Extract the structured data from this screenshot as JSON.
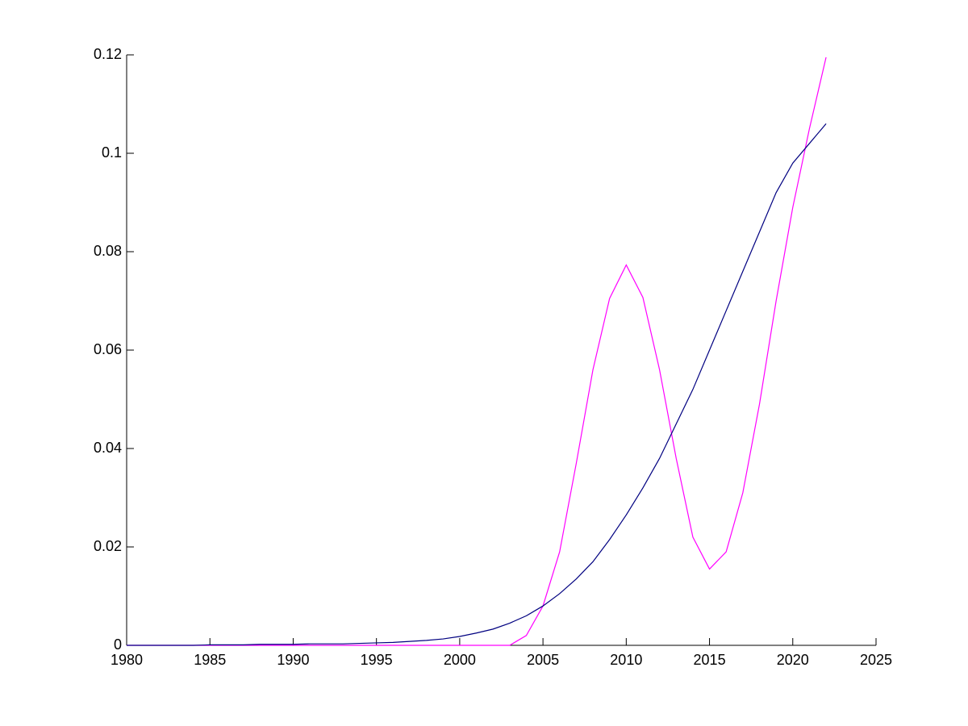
{
  "chart_data": {
    "type": "line",
    "x": [
      1980,
      1981,
      1982,
      1983,
      1984,
      1985,
      1986,
      1987,
      1988,
      1989,
      1990,
      1991,
      1992,
      1993,
      1994,
      1995,
      1996,
      1997,
      1998,
      1999,
      2000,
      2001,
      2002,
      2003,
      2004,
      2005,
      2006,
      2007,
      2008,
      2009,
      2010,
      2011,
      2012,
      2013,
      2014,
      2015,
      2016,
      2017,
      2018,
      2019,
      2020,
      2021,
      2022
    ],
    "series": [
      {
        "color": "#ff00ff",
        "values": [
          0,
          0,
          0,
          0,
          0,
          0,
          0,
          0,
          0,
          0,
          0,
          0,
          0,
          0,
          0,
          0,
          0,
          0,
          0,
          0,
          0,
          0,
          0,
          0,
          0.002,
          0.008,
          0.019,
          0.037,
          0.056,
          0.0705,
          0.0773,
          0.0707,
          0.056,
          0.038,
          0.022,
          0.0155,
          0.019,
          0.031,
          0.049,
          0.07,
          0.089,
          0.105,
          0.1195
        ]
      },
      {
        "color": "#000080",
        "values": [
          0,
          0,
          0,
          0,
          0,
          0.0001,
          0.0001,
          0.0001,
          0.0002,
          0.0002,
          0.0002,
          0.0003,
          0.0003,
          0.0003,
          0.0004,
          0.0005,
          0.0006,
          0.0008,
          0.001,
          0.0013,
          0.0018,
          0.0025,
          0.0033,
          0.0045,
          0.006,
          0.008,
          0.0105,
          0.0135,
          0.017,
          0.0215,
          0.0265,
          0.032,
          0.038,
          0.045,
          0.052,
          0.06,
          0.068,
          0.076,
          0.084,
          0.092,
          0.098,
          0.102,
          0.106
        ]
      }
    ],
    "xlim": [
      1980,
      2025
    ],
    "xticks": [
      1980,
      1985,
      1990,
      1995,
      2000,
      2005,
      2010,
      2015,
      2020,
      2025
    ],
    "ylim": [
      0,
      0.12
    ],
    "yticks": [
      0,
      0.02,
      0.04,
      0.06,
      0.08,
      0.1,
      0.12
    ]
  }
}
